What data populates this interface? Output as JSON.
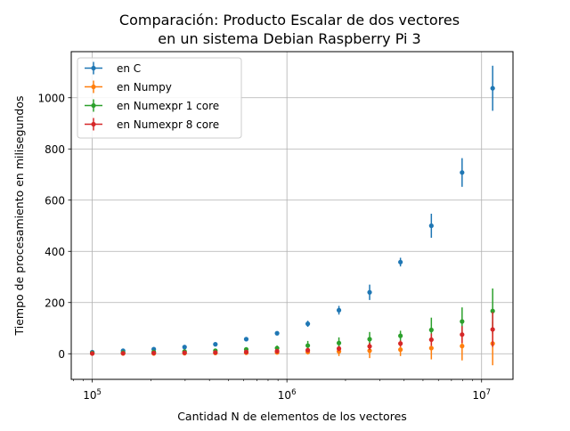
{
  "chart_data": {
    "type": "scatter",
    "title": [
      "Comparación: Producto Escalar de dos vectores",
      "en un sistema Debian Raspberry Pi 3"
    ],
    "xlabel": "Cantidad N de elementos de los vectores",
    "ylabel": "Tiempo de procesamiento en milisegundos",
    "x_scale": "log",
    "xlim": [
      78000,
      14500000
    ],
    "ylim": [
      -100,
      1180
    ],
    "x_ticks": [
      {
        "value": 100000,
        "base": "10",
        "exp": "5"
      },
      {
        "value": 1000000,
        "base": "10",
        "exp": "6"
      },
      {
        "value": 10000000,
        "base": "10",
        "exp": "7"
      }
    ],
    "y_ticks": [
      0,
      200,
      400,
      600,
      800,
      1000
    ],
    "grid": true,
    "legend_position": "top-left",
    "x": [
      100000,
      144000,
      207000,
      298000,
      429000,
      618000,
      890000,
      1280000,
      1850000,
      2660000,
      3830000,
      5520000,
      7940000,
      11400000
    ],
    "series": [
      {
        "name": "en C",
        "color": "#1f77b4",
        "values": [
          6,
          12,
          18,
          26,
          37,
          57,
          80,
          117,
          170,
          240,
          358,
          500,
          708,
          1037
        ],
        "errors": [
          3,
          4,
          5,
          6,
          5,
          5,
          8,
          12,
          17,
          30,
          17,
          47,
          56,
          88
        ]
      },
      {
        "name": "en Numpy",
        "color": "#ff7f0e",
        "values": [
          1,
          1,
          1,
          2,
          3,
          4,
          5,
          7,
          9,
          12,
          16,
          22,
          30,
          40
        ],
        "errors": [
          1,
          1,
          2,
          2,
          3,
          4,
          6,
          10,
          18,
          29,
          25,
          44,
          56,
          85
        ]
      },
      {
        "name": "en Numexpr 1 core",
        "color": "#2ca02c",
        "values": [
          3,
          5,
          7,
          9,
          12,
          17,
          22,
          32,
          42,
          57,
          70,
          93,
          126,
          167
        ],
        "errors": [
          2,
          3,
          4,
          5,
          6,
          7,
          10,
          18,
          22,
          28,
          20,
          48,
          55,
          88
        ]
      },
      {
        "name": "en Numexpr 8 core",
        "color": "#d62728",
        "values": [
          1,
          2,
          3,
          4,
          5,
          7,
          10,
          14,
          20,
          29,
          40,
          55,
          75,
          95
        ],
        "errors": [
          1,
          1,
          2,
          2,
          3,
          4,
          5,
          8,
          10,
          14,
          12,
          24,
          33,
          68
        ]
      }
    ]
  }
}
